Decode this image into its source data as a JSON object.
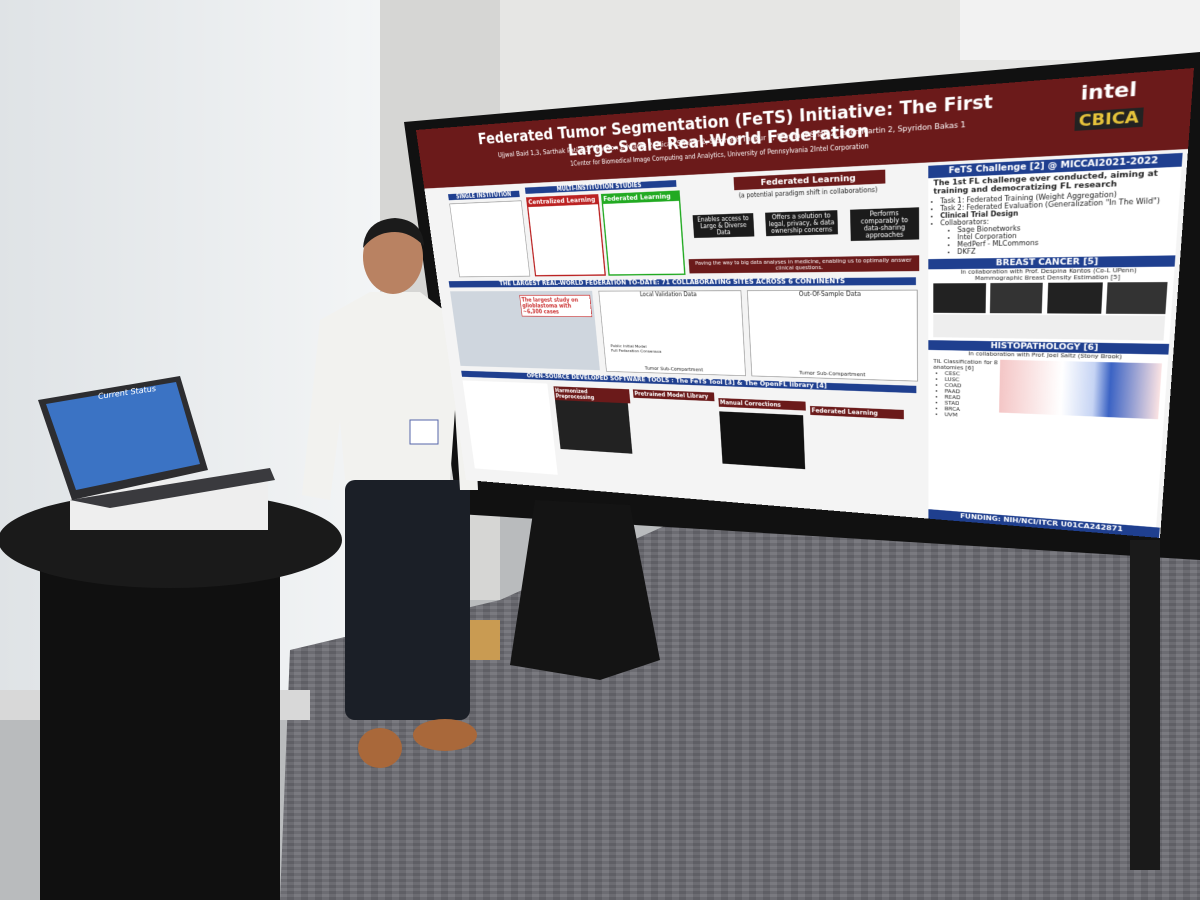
{
  "poster": {
    "title": "Federated Tumor Segmentation (FeTS) Initiative: The First Large-Scale Real-World Federation",
    "authors": "Ujjwal Baid 1,3, Sarthak Pati 1,3, Brandon Edwards 2, Micah Sheller 2, Siddhesh Thakur 1, Prashant Shah 2, Jason Martin 2, Spyridon Bakas 1",
    "affiliation": "1Center for Biomedical Image Computing and Analytics, University of Pennsylvania 2Intel Corporation",
    "logos": [
      "intel",
      "CBICA"
    ],
    "fl_section": {
      "single": "SINGLE INSTITUTION",
      "multi": "MULTI-INSTITUTION STUDIES",
      "centralized": "Centralized Learning",
      "federated": "Federated Learning",
      "heading": "Federated Learning",
      "subheading": "(a potential paradigm shift in collaborations)",
      "benefits": [
        "Enables access to Large & Diverse Data",
        "Offers a solution to legal, privacy, & data ownership concerns",
        "Performs comparably to data-sharing approaches"
      ],
      "banner": "Paving the way to big data analyses in medicine, enabling us to optimally answer clinical questions."
    },
    "federation": {
      "heading": "THE LARGEST REAL-WORLD FEDERATION TO-DATE: 71 COLLABORATING SITES ACROSS 6 CONTINENTS",
      "callout": "The largest study on glioblastoma with ~6,300 cases",
      "plot_titles": [
        "Local Validation Data",
        "Out-Of-Sample Data"
      ],
      "x_label": "Tumor Sub-Compartment",
      "legend": [
        "Public Initial Model",
        "Full Federation Consensus"
      ]
    },
    "tools": {
      "heading": "OPEN-SOURCE DEVELOPED SOFTWARE TOOLS : The FeTS Tool [3] & The OpenFL library [4]",
      "steps": [
        "Harmonized Preprocessing",
        "Pretrained Model Library",
        "Manual Corrections",
        "Federated Learning"
      ]
    },
    "funding": "FUNDING: NIH/NCI/ITCR U01CA242871",
    "challenge": {
      "heading": "FeTS Challenge [2] @ MICCAI2021-2022",
      "lead": "The 1st FL challenge ever conducted, aiming at training and democratizing FL research",
      "tasks": [
        "Task 1: Federated Training (Weight Aggregation)",
        "Task 2: Federated Evaluation (Generalization \"In The Wild\")"
      ],
      "design": "Clinical Trial Design",
      "collab_label": "Collaborators:",
      "collaborators": [
        "Sage Bionetworks",
        "Intel Corporation",
        "MedPerf - MLCommons",
        "DKFZ"
      ]
    },
    "breast": {
      "heading": "BREAST CANCER [5]",
      "sub": "In collaboration with Prof. Despina Kontos (Co-L UPenn)",
      "task": "Mammographic Breast Density Estimation [5]"
    },
    "histo": {
      "heading": "HISTOPATHOLOGY [6]",
      "sub": "In collaboration with Prof. Joel Saltz (Stony Brook)",
      "task": "TIL Classification for 8 anatomies [6]",
      "anatomies": [
        "CESC",
        "LUSC",
        "COAD",
        "PAAD",
        "READ",
        "STAD",
        "BRCA",
        "UVM"
      ]
    }
  },
  "laptop": {
    "screen_title": "Current Status"
  }
}
